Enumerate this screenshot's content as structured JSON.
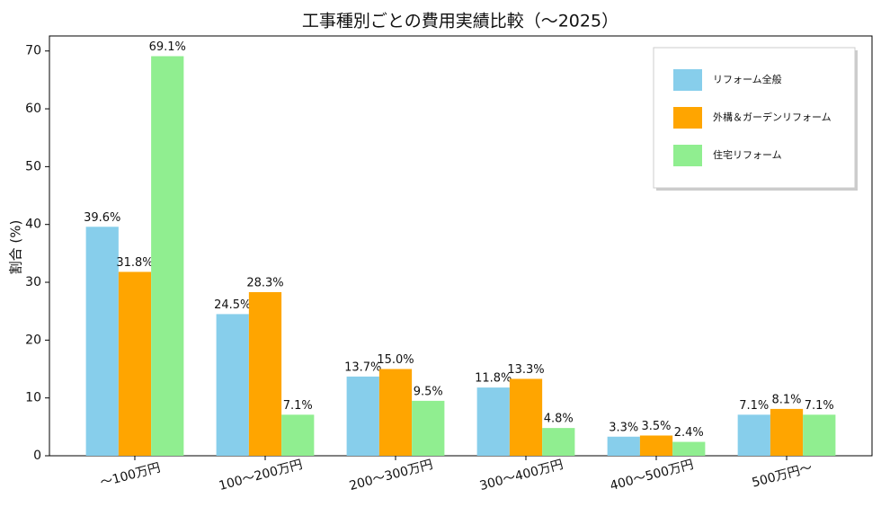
{
  "chart_data": {
    "type": "bar",
    "title": "工事種別ごとの費用実績比較（〜2025）",
    "y_label": "割合 (%)",
    "categories": [
      "〜100万円",
      "100〜200万円",
      "200〜300万円",
      "300〜400万円",
      "400〜500万円",
      "500万円〜"
    ],
    "series": [
      {
        "name": "リフォーム全般",
        "color": "#87ceeb",
        "values": [
          39.6,
          24.5,
          13.7,
          11.8,
          3.3,
          7.1
        ],
        "value_labels": [
          "39.6%",
          "24.5%",
          "13.7%",
          "11.8%",
          "3.3%",
          "7.1%"
        ]
      },
      {
        "name": "外構＆ガーデンリフォーム",
        "color": "#ffa500",
        "values": [
          31.8,
          28.3,
          15.0,
          13.3,
          3.5,
          8.1
        ],
        "value_labels": [
          "31.8%",
          "28.3%",
          "15.0%",
          "13.3%",
          "3.5%",
          "8.1%"
        ]
      },
      {
        "name": "住宅リフォーム",
        "color": "#90ee90",
        "values": [
          69.1,
          7.1,
          9.5,
          4.8,
          2.4,
          7.1
        ],
        "value_labels": [
          "69.1%",
          "7.1%",
          "9.5%",
          "4.8%",
          "2.4%",
          "7.1%"
        ]
      }
    ],
    "ylim": [
      0,
      72.6
    ],
    "yticks": [
      0,
      10,
      20,
      30,
      40,
      50,
      60,
      70
    ],
    "legend": "upper right"
  }
}
